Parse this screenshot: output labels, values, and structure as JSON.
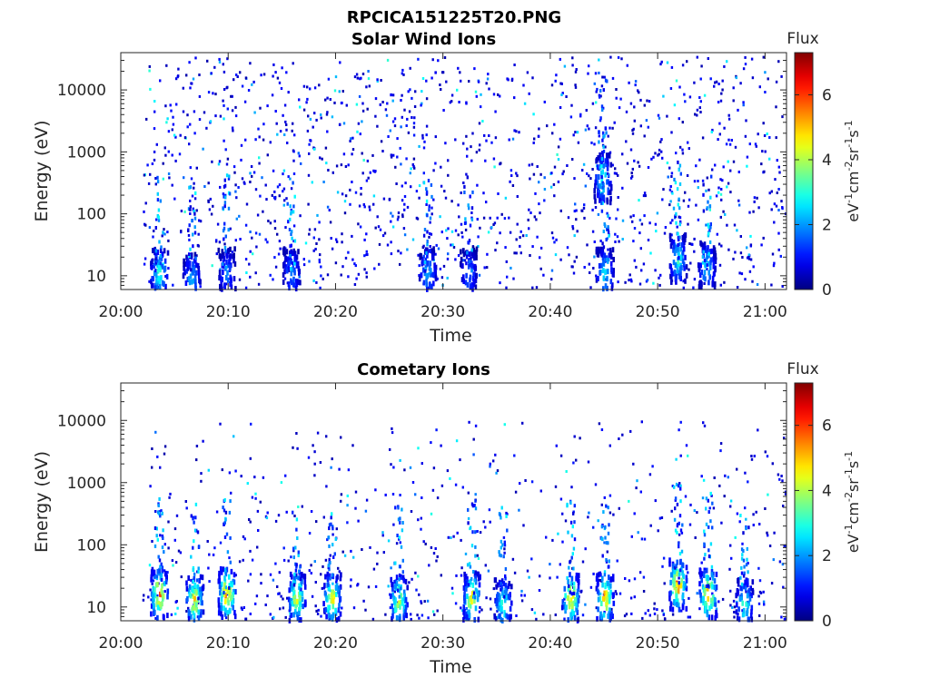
{
  "figure": {
    "title": "RPCICA151225T20.PNG"
  },
  "chart_data": [
    {
      "type": "heatmap",
      "title": "Solar Wind Ions",
      "xlabel": "Time",
      "ylabel": "Energy (eV)",
      "x_range": [
        "20:00",
        "21:02"
      ],
      "x_ticks": [
        "20:00",
        "20:10",
        "20:20",
        "20:30",
        "20:40",
        "20:50",
        "21:00"
      ],
      "y_scale": "log",
      "y_range": [
        6,
        40000
      ],
      "y_ticks": [
        "10",
        "100",
        "1000",
        "10000"
      ],
      "colorbar": {
        "label": "Flux",
        "units_label": "eV-1cm-2sr-1s-1",
        "range": [
          0,
          7.3
        ],
        "ticks": [
          "0",
          "2",
          "4",
          "6"
        ],
        "colormap": "jet"
      },
      "background_points_approx": 1400,
      "hotspots": [
        {
          "time_min": 3.5,
          "energy_ev": 12,
          "flux": 3.4
        },
        {
          "time_min": 6.5,
          "energy_ev": 10,
          "flux": 2.5
        },
        {
          "time_min": 9.8,
          "energy_ev": 12,
          "flux": 2.0
        },
        {
          "time_min": 15.8,
          "energy_ev": 12,
          "flux": 2.2
        },
        {
          "time_min": 28.5,
          "energy_ev": 12,
          "flux": 2.5
        },
        {
          "time_min": 32.3,
          "energy_ev": 12,
          "flux": 2.0
        },
        {
          "time_min": 44.8,
          "energy_ev": 400,
          "flux": 3.2
        },
        {
          "time_min": 45.0,
          "energy_ev": 12,
          "flux": 3.0
        },
        {
          "time_min": 51.8,
          "energy_ev": 20,
          "flux": 3.2
        },
        {
          "time_min": 54.5,
          "energy_ev": 15,
          "flux": 2.8
        }
      ]
    },
    {
      "type": "heatmap",
      "title": "Cometary Ions",
      "xlabel": "Time",
      "ylabel": "Energy (eV)",
      "x_range": [
        "20:00",
        "21:02"
      ],
      "x_ticks": [
        "20:00",
        "20:10",
        "20:20",
        "20:30",
        "20:40",
        "20:50",
        "21:00"
      ],
      "y_scale": "log",
      "y_range": [
        6,
        40000
      ],
      "y_ticks": [
        "10",
        "100",
        "1000",
        "10000"
      ],
      "colorbar": {
        "label": "Flux",
        "units_label": "eV-1cm-2sr-1s-1",
        "range": [
          0,
          7.3
        ],
        "ticks": [
          "0",
          "2",
          "4",
          "6"
        ],
        "colormap": "jet"
      },
      "background_points_approx": 700,
      "hotspots": [
        {
          "time_min": 3.5,
          "energy_ev": 18,
          "flux": 6.0
        },
        {
          "time_min": 6.8,
          "energy_ev": 14,
          "flux": 5.2
        },
        {
          "time_min": 9.8,
          "energy_ev": 18,
          "flux": 6.0
        },
        {
          "time_min": 16.3,
          "energy_ev": 16,
          "flux": 5.0
        },
        {
          "time_min": 19.6,
          "energy_ev": 15,
          "flux": 5.0
        },
        {
          "time_min": 25.8,
          "energy_ev": 14,
          "flux": 4.8
        },
        {
          "time_min": 32.6,
          "energy_ev": 15,
          "flux": 5.2
        },
        {
          "time_min": 35.5,
          "energy_ev": 12,
          "flux": 3.6
        },
        {
          "time_min": 41.8,
          "energy_ev": 15,
          "flux": 5.5
        },
        {
          "time_min": 45.0,
          "energy_ev": 15,
          "flux": 5.8
        },
        {
          "time_min": 51.8,
          "energy_ev": 25,
          "flux": 6.2
        },
        {
          "time_min": 54.6,
          "energy_ev": 18,
          "flux": 6.0
        },
        {
          "time_min": 58.0,
          "energy_ev": 12,
          "flux": 3.5
        }
      ]
    }
  ]
}
